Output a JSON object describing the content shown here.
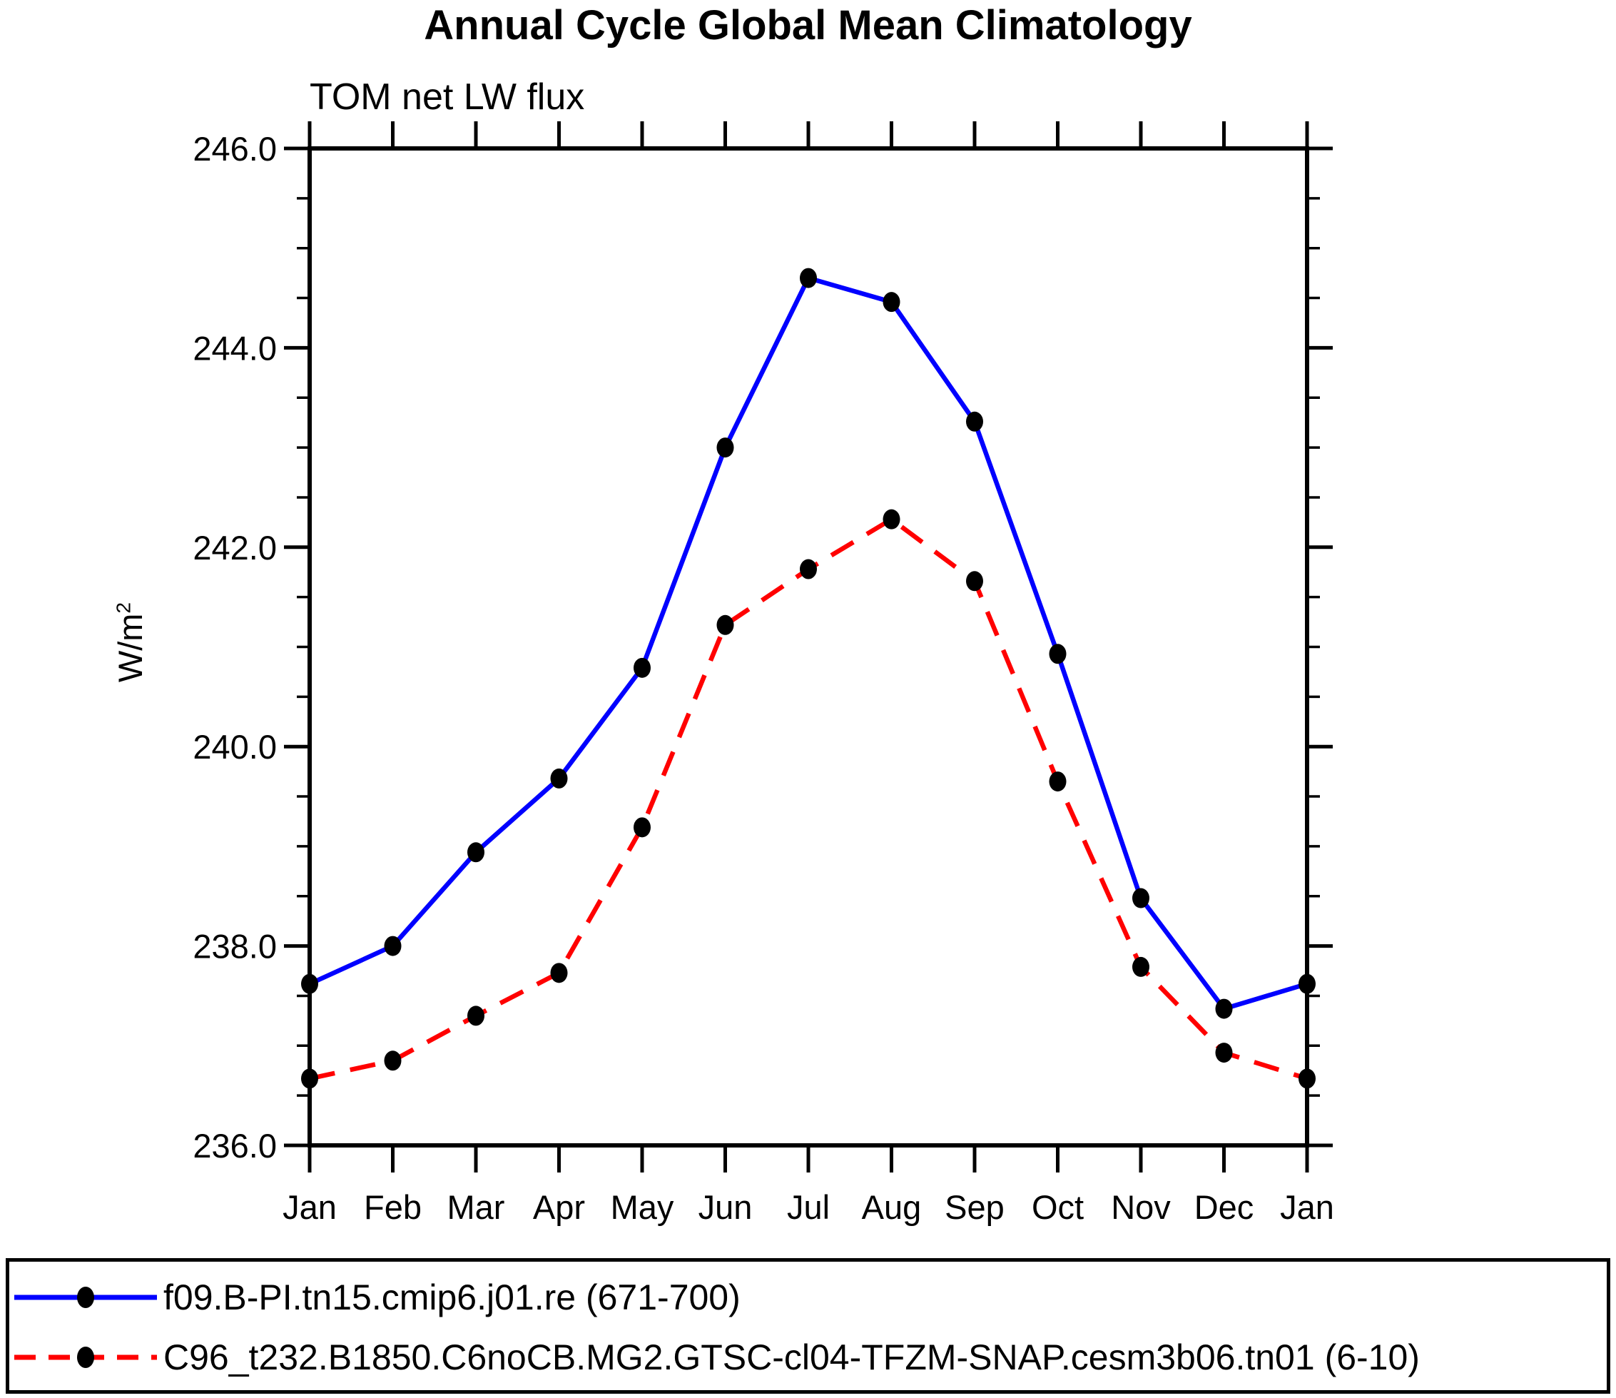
{
  "title": "Annual Cycle Global Mean Climatology",
  "subtitle": "TOM net LW flux",
  "y_axis": {
    "unit_base": "W/m",
    "unit_exp": "2",
    "tick_labels": [
      "246.0",
      "244.0",
      "242.0",
      "240.0",
      "238.0",
      "236.0"
    ]
  },
  "x_axis": {
    "tick_labels": [
      "Jan",
      "Feb",
      "Mar",
      "Apr",
      "May",
      "Jun",
      "Jul",
      "Aug",
      "Sep",
      "Oct",
      "Nov",
      "Dec",
      "Jan"
    ]
  },
  "legend": {
    "entries": [
      {
        "label": "f09.B-PI.tn15.cmip6.j01.re (671-700)",
        "color": "#0000ff",
        "line_style": "solid",
        "marker_color": "#000000"
      },
      {
        "label": "C96_t232.B1850.C6noCB.MG2.GTSC-cl04-TFZM-SNAP.cesm3b06.tn01 (6-10)",
        "color": "#ff0000",
        "line_style": "dashed",
        "marker_color": "#000000"
      }
    ]
  },
  "chart_data": {
    "type": "line",
    "title": "TOM net LW flux",
    "suptitle": "Annual Cycle Global Mean Climatology",
    "xlabel": "",
    "ylabel": "W/m2",
    "ylim": [
      236.0,
      246.0
    ],
    "y_major_step": 2.0,
    "y_minor_step": 0.5,
    "grid": false,
    "legend_position": "bottom",
    "categories": [
      "Jan",
      "Feb",
      "Mar",
      "Apr",
      "May",
      "Jun",
      "Jul",
      "Aug",
      "Sep",
      "Oct",
      "Nov",
      "Dec",
      "Jan"
    ],
    "series": [
      {
        "name": "f09.B-PI.tn15.cmip6.j01.re (671-700)",
        "color": "#0000ff",
        "line_style": "solid",
        "marker": "filled-circle",
        "marker_color": "#000000",
        "values": [
          237.62,
          238.0,
          238.94,
          239.68,
          240.79,
          243.0,
          244.7,
          244.46,
          243.26,
          240.93,
          238.48,
          237.37,
          237.62
        ]
      },
      {
        "name": "C96_t232.B1850.C6noCB.MG2.GTSC-cl04-TFZM-SNAP.cesm3b06.tn01 (6-10)",
        "color": "#ff0000",
        "line_style": "dashed",
        "marker": "filled-circle",
        "marker_color": "#000000",
        "values": [
          236.67,
          236.85,
          237.3,
          237.73,
          239.19,
          241.22,
          241.78,
          242.28,
          241.66,
          239.65,
          237.79,
          236.93,
          236.67
        ]
      }
    ]
  }
}
